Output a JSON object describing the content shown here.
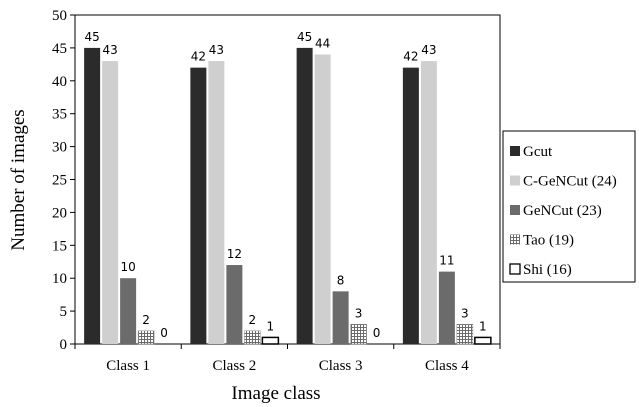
{
  "chart_data": {
    "type": "bar",
    "title": "",
    "xlabel": "Image class",
    "ylabel": "Number of  images",
    "ylim": [
      0,
      50
    ],
    "yticks": [
      0,
      5,
      10,
      15,
      20,
      25,
      30,
      35,
      40,
      45,
      50
    ],
    "grid": false,
    "legend_position": "right",
    "categories": [
      "Class 1",
      "Class 2",
      "Class 3",
      "Class 4"
    ],
    "series": [
      {
        "name": "Gcut",
        "values": [
          45,
          42,
          45,
          42
        ],
        "color": "#2b2b2b",
        "pattern": "solid"
      },
      {
        "name": "C-GeNCut (24)",
        "values": [
          43,
          43,
          44,
          43
        ],
        "color": "#cfcfcf",
        "pattern": "solid"
      },
      {
        "name": "GeNCut (23)",
        "values": [
          10,
          12,
          8,
          11
        ],
        "color": "#6b6b6b",
        "pattern": "solid"
      },
      {
        "name": "Tao (19)",
        "values": [
          2,
          2,
          3,
          3
        ],
        "color": "#9a9a9a",
        "pattern": "grid"
      },
      {
        "name": "Shi (16)",
        "values": [
          0,
          1,
          0,
          1
        ],
        "color": "#ffffff",
        "pattern": "outline"
      }
    ],
    "data_labels": [
      [
        "45",
        "43",
        "10",
        "2",
        "0"
      ],
      [
        "42",
        "43",
        "12",
        "2",
        "1"
      ],
      [
        "45",
        "44",
        "8",
        "3",
        "0"
      ],
      [
        "42",
        "43",
        "11",
        "3",
        "1"
      ]
    ]
  }
}
